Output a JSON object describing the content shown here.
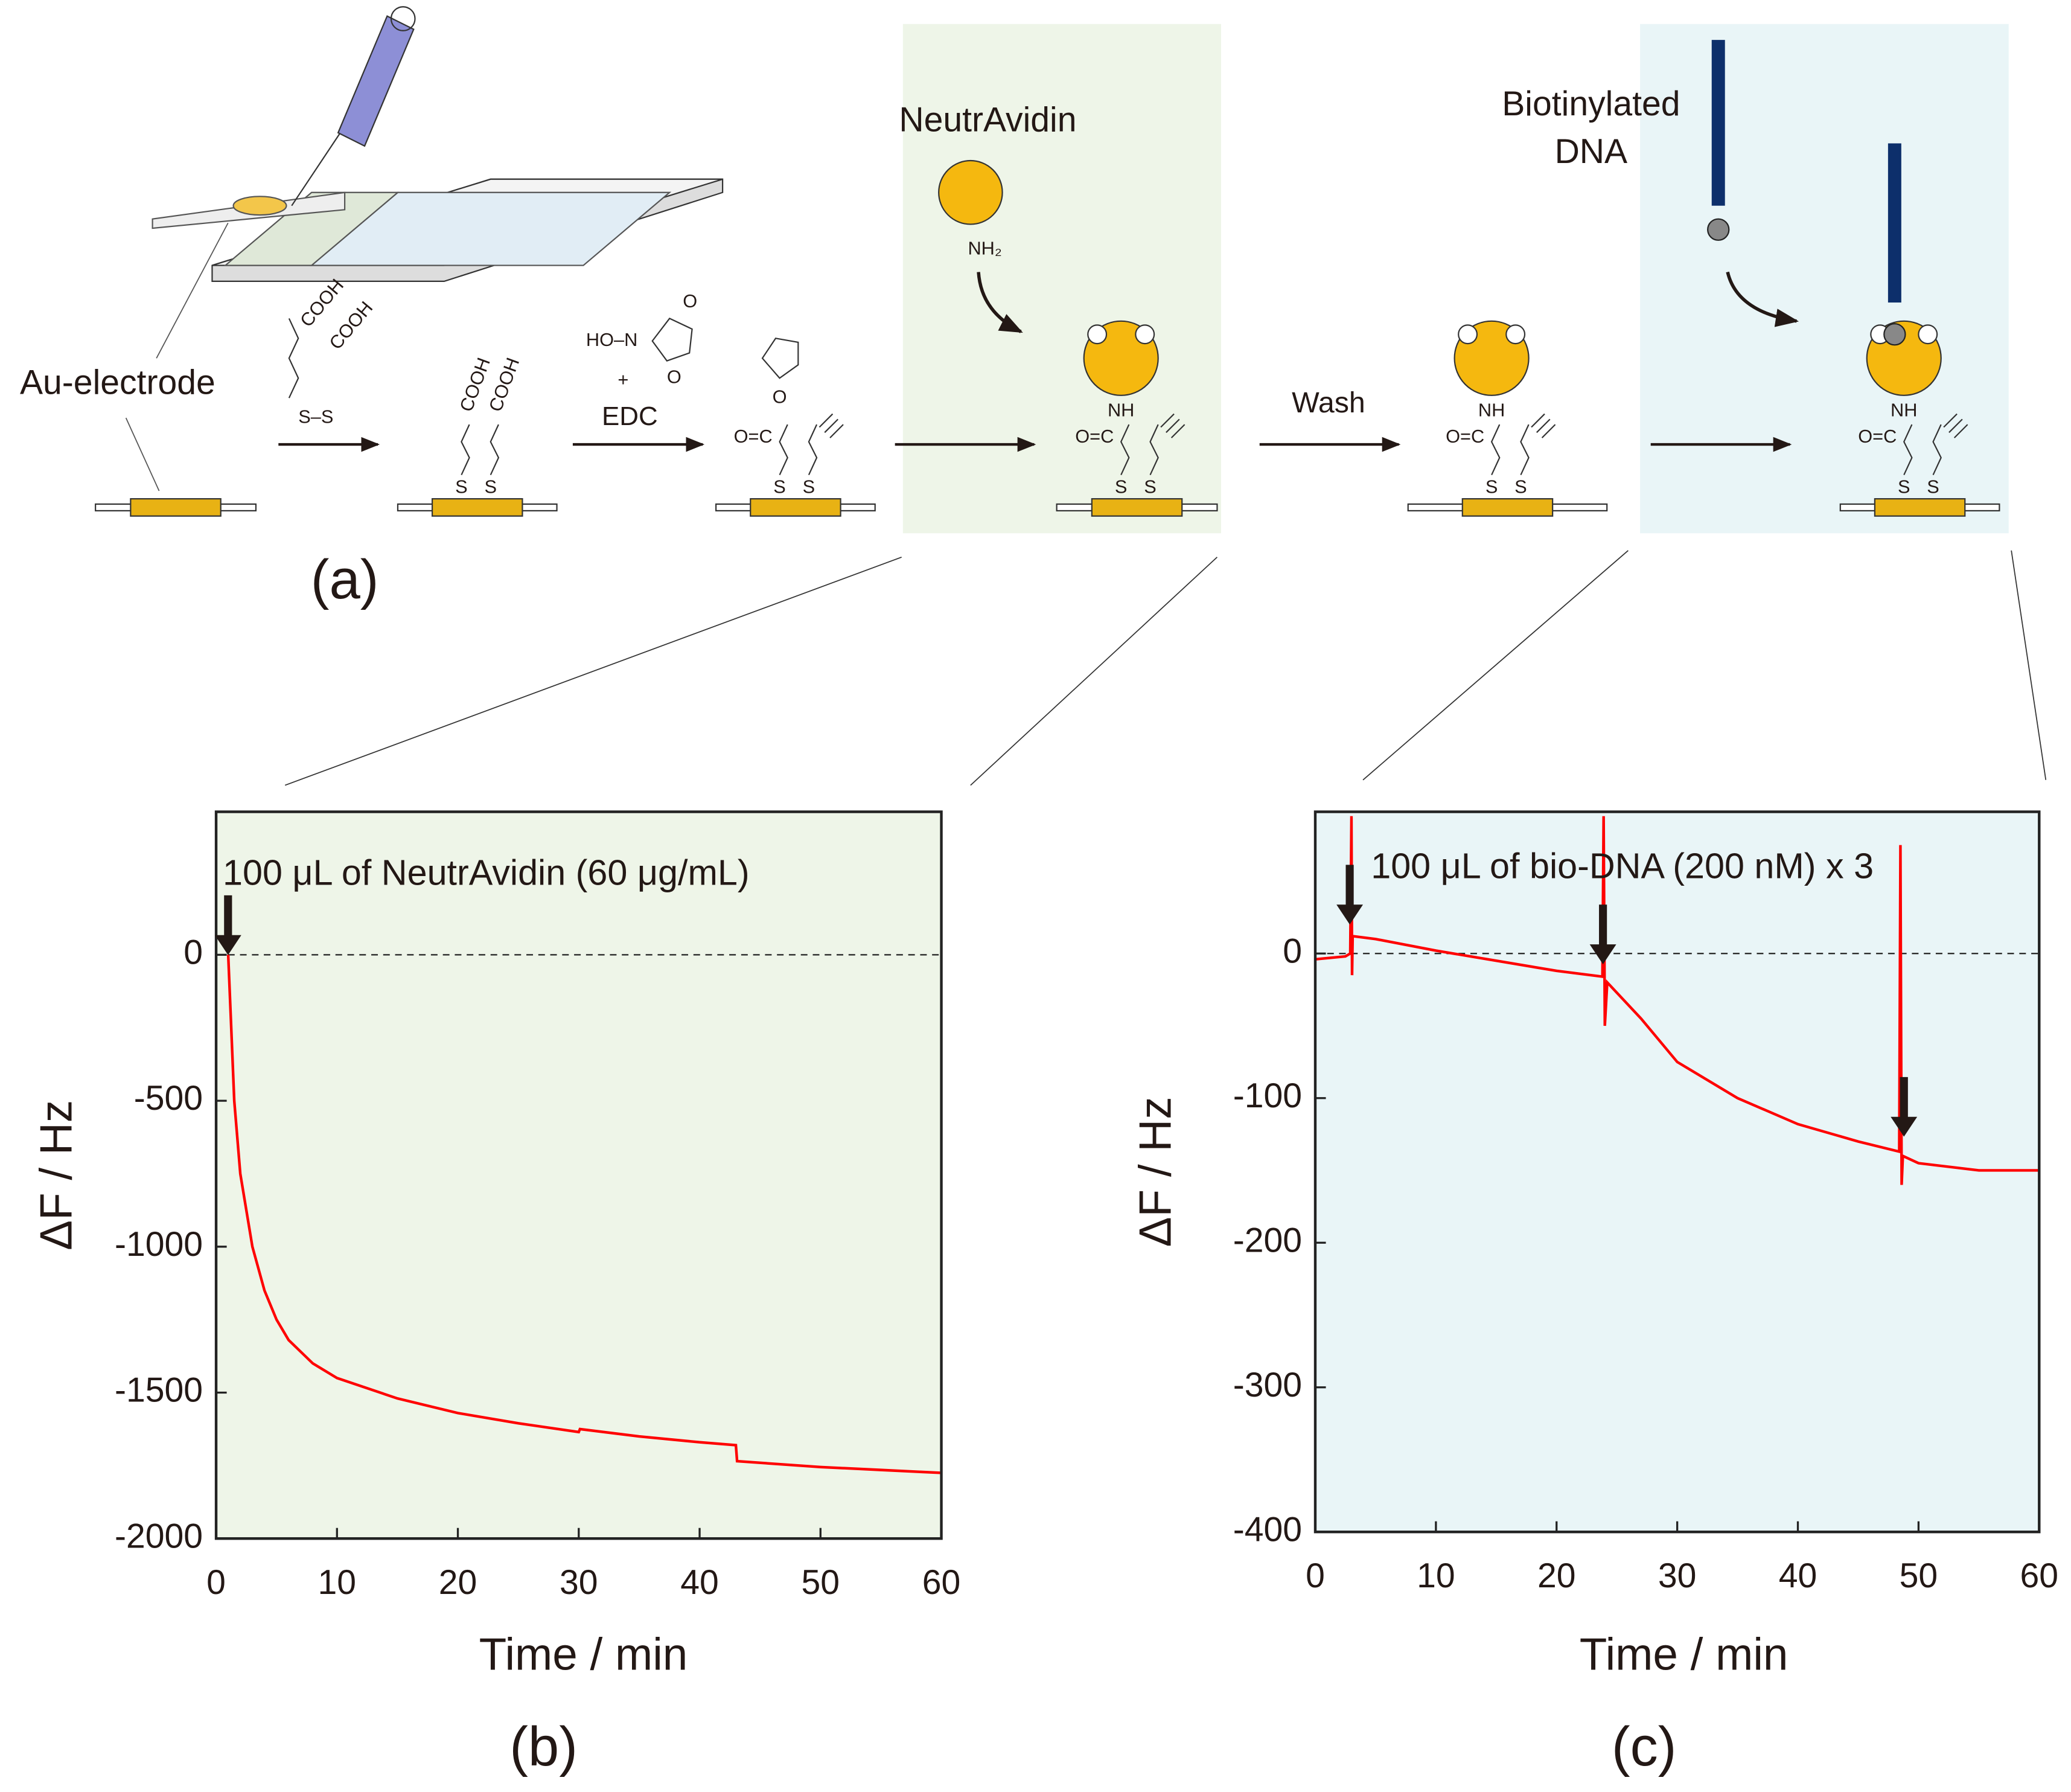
{
  "diagram": {
    "panel": "(a)",
    "labels": {
      "electrode": "Au-electrode",
      "cooh": "COOH",
      "ss": "S–S",
      "s": "S",
      "hon": "HO–N",
      "o": "O",
      "plus": "+",
      "edc": "EDC",
      "neutravidin": "NeutrAvidin",
      "nh2": "NH₂",
      "nh": "NH",
      "oc": "O=C",
      "wash": "Wash",
      "biotinylated": [
        "Biotinylated",
        "DNA"
      ]
    }
  },
  "chart_data": [
    {
      "type": "line",
      "panel": "(b)",
      "annotation": "100 μL of NeutrAvidin (60 μg/mL)",
      "xlabel": "Time / min",
      "ylabel": "ΔF / Hz",
      "background": "#eef5e8",
      "color": "#ff0000",
      "x": [
        1,
        1.2,
        1.5,
        2,
        3,
        4,
        5,
        6,
        8,
        10,
        15,
        20,
        25,
        30,
        30.1,
        35,
        40,
        43,
        43.1,
        50,
        55,
        60
      ],
      "values": [
        0,
        -200,
        -500,
        -750,
        -1000,
        -1150,
        -1250,
        -1320,
        -1400,
        -1450,
        -1520,
        -1570,
        -1605,
        -1635,
        -1625,
        -1650,
        -1670,
        -1680,
        -1735,
        -1755,
        -1765,
        -1775
      ],
      "xlim": [
        0,
        60
      ],
      "xticks": [
        0,
        10,
        20,
        30,
        40,
        50,
        60
      ],
      "ylim": [
        -2000,
        490
      ],
      "yticks": [
        0,
        -500,
        -1000,
        -1500,
        -2000
      ]
    },
    {
      "type": "line",
      "panel": "(c)",
      "annotation": "100 μL of bio-DNA (200 nM) x 3",
      "xlabel": "Time / min",
      "ylabel": "ΔF / Hz",
      "background": "#e9f5f7",
      "color": "#ff0000",
      "x": [
        0,
        2.5,
        2.9,
        3,
        3.05,
        3.1,
        5,
        10,
        15,
        20,
        23.8,
        23.9,
        24,
        24.2,
        27,
        30,
        35,
        40,
        45,
        48.4,
        48.5,
        48.6,
        48.7,
        50,
        55,
        60
      ],
      "values": [
        -4,
        -2,
        0,
        95,
        -15,
        12,
        10,
        2,
        -5,
        -12,
        -16,
        95,
        -50,
        -20,
        -45,
        -75,
        -100,
        -118,
        -130,
        -137,
        75,
        -160,
        -140,
        -145,
        -150,
        -150
      ],
      "xlim": [
        0,
        60
      ],
      "xticks": [
        0,
        10,
        20,
        30,
        40,
        50,
        60
      ],
      "ylim": [
        -400,
        98
      ],
      "yticks": [
        0,
        -100,
        -200,
        -300,
        -400
      ]
    }
  ]
}
